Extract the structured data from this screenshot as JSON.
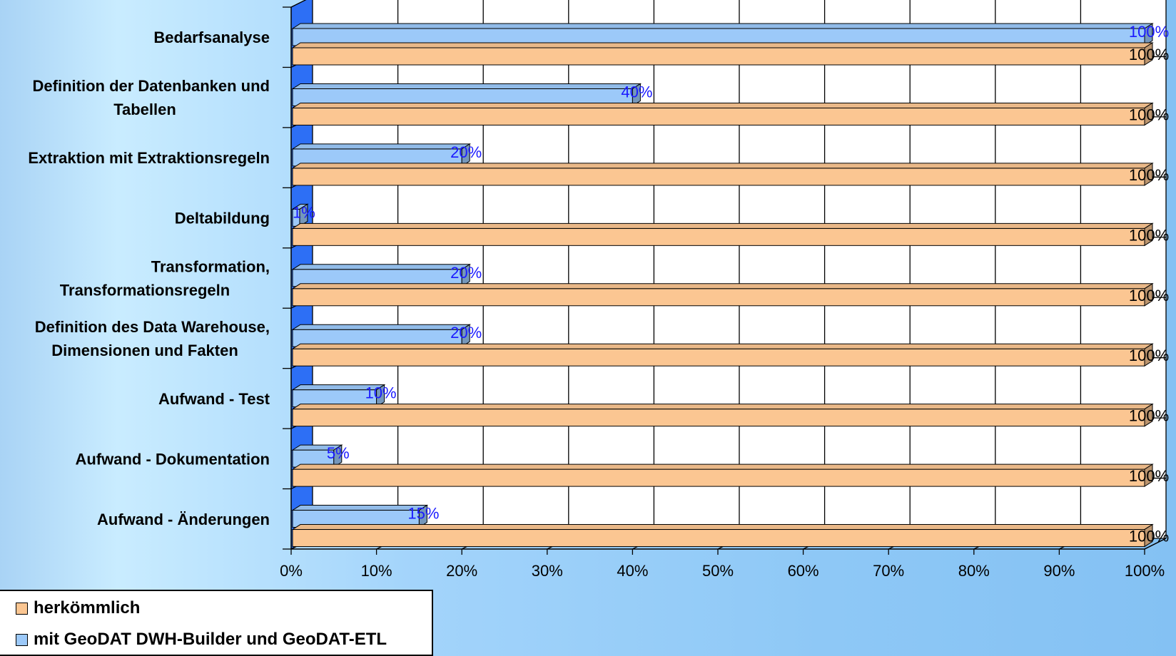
{
  "chart_data": {
    "type": "bar",
    "orientation": "horizontal",
    "categories": [
      "Bedarfsanalyse",
      "Definition der Datenbanken und Tabellen",
      "Extraktion mit Extraktionsregeln",
      "Deltabildung",
      "Transformation, Transformationsregeln",
      "Definition des Data Warehouse, Dimensionen und Fakten",
      "Aufwand - Test",
      "Aufwand - Dokumentation",
      "Aufwand - Änderungen"
    ],
    "category_lines": [
      [
        "Bedarfsanalyse"
      ],
      [
        "Definition der Datenbanken und",
        "Tabellen"
      ],
      [
        "Extraktion mit Extraktionsregeln"
      ],
      [
        "Deltabildung"
      ],
      [
        "Transformation,",
        "Transformationsregeln"
      ],
      [
        "Definition des Data Warehouse,",
        "Dimensionen und Fakten"
      ],
      [
        "Aufwand - Test"
      ],
      [
        "Aufwand - Dokumentation"
      ],
      [
        "Aufwand - Änderungen"
      ]
    ],
    "series": [
      {
        "name": "mit GeoDAT DWH-Builder und GeoDAT-ETL",
        "color": "#9cc9f9",
        "values": [
          100,
          40,
          20,
          1,
          20,
          20,
          10,
          5,
          15
        ]
      },
      {
        "name": "herkömmlich",
        "color": "#fbc692",
        "values": [
          100,
          100,
          100,
          100,
          100,
          100,
          100,
          100,
          100
        ]
      }
    ],
    "value_suffix": "%",
    "xlim": [
      0,
      100
    ],
    "xticks": [
      "0%",
      "10%",
      "20%",
      "30%",
      "40%",
      "50%",
      "60%",
      "70%",
      "80%",
      "90%",
      "100%"
    ],
    "grid": true,
    "legend_position": "bottom-left",
    "title": "",
    "xlabel": "",
    "ylabel": ""
  },
  "legend": {
    "items": [
      {
        "label": "herkömmlich",
        "color": "#fbc692"
      },
      {
        "label": "mit GeoDAT DWH-Builder und GeoDAT-ETL",
        "color": "#9cc9f9"
      }
    ]
  }
}
